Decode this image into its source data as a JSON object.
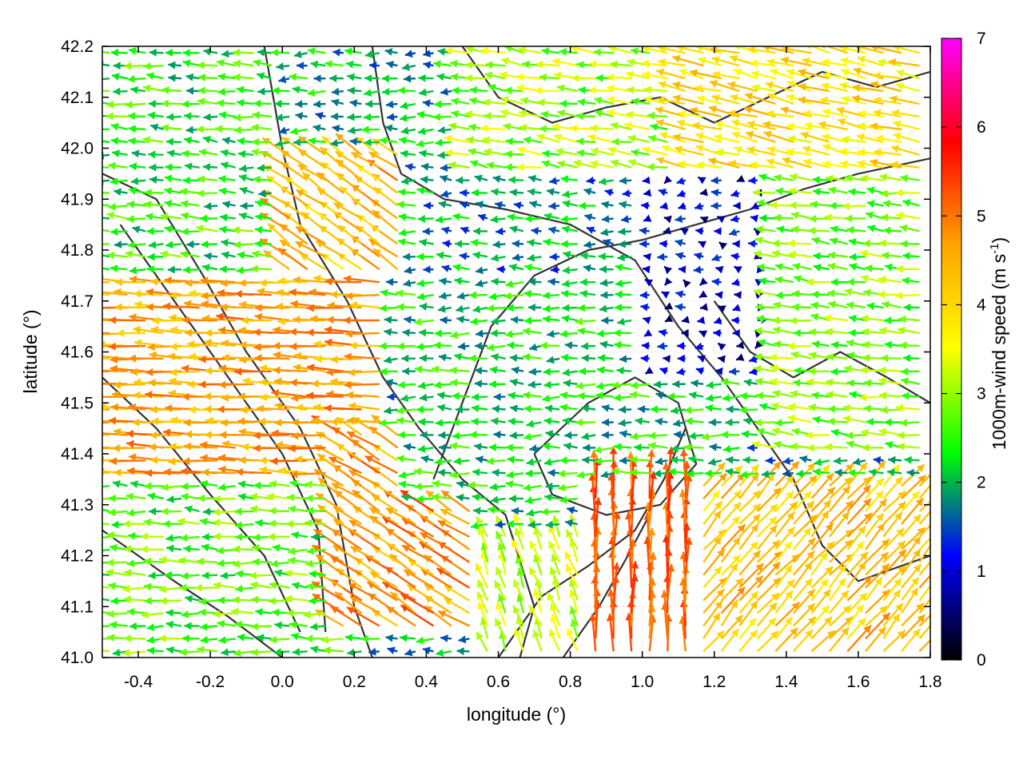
{
  "chart_data": {
    "type": "vector-field",
    "xlabel": "longitude (°)",
    "ylabel": "latitude (°)",
    "colorbar_label": {
      "main": "1000m-wind speed (m s",
      "superscript": "-1",
      "close": ")"
    },
    "xlim": [
      -0.5,
      1.8
    ],
    "ylim": [
      41.0,
      42.2
    ],
    "x_ticks": [
      -0.4,
      -0.2,
      0.0,
      0.2,
      0.4,
      0.6,
      0.8,
      1.0,
      1.2,
      1.4,
      1.6,
      1.8
    ],
    "x_tick_labels": [
      "-0.4",
      "-0.2",
      "0.0",
      "0.2",
      "0.4",
      "0.6",
      "0.8",
      "1.0",
      "1.2",
      "1.4",
      "1.6",
      "1.8"
    ],
    "y_ticks": [
      41.0,
      41.1,
      41.2,
      41.3,
      41.4,
      41.5,
      41.6,
      41.7,
      41.8,
      41.9,
      42.0,
      42.1,
      42.2
    ],
    "y_tick_labels": [
      "41.0",
      "41.1",
      "41.2",
      "41.3",
      "41.4",
      "41.5",
      "41.6",
      "41.7",
      "41.8",
      "41.9",
      "42.0",
      "42.1",
      "42.2"
    ],
    "colorbar": {
      "range": [
        0,
        7
      ],
      "ticks": [
        0,
        1,
        2,
        3,
        4,
        5,
        6,
        7
      ],
      "tick_labels": [
        "0",
        "1",
        "2",
        "3",
        "4",
        "5",
        "6",
        "7"
      ],
      "colors": [
        "#000000",
        "#0000ff",
        "#00ff00",
        "#ffff00",
        "#ffa500",
        "#ff0000",
        "#ff00ff"
      ]
    },
    "grid": true,
    "vector_regions": [
      {
        "lon": [
          -0.5,
          0.3
        ],
        "lat": [
          41.35,
          41.75
        ],
        "u": -4.6,
        "v": 0.2
      },
      {
        "lon": [
          -0.5,
          0.2
        ],
        "lat": [
          41.0,
          41.35
        ],
        "u": -2.6,
        "v": 0.1
      },
      {
        "lon": [
          -0.5,
          0.0
        ],
        "lat": [
          41.75,
          42.2
        ],
        "u": -2.4,
        "v": 0.2
      },
      {
        "lon": [
          0.0,
          0.35
        ],
        "lat": [
          41.75,
          42.0
        ],
        "u": -3.6,
        "v": 2.5
      },
      {
        "lon": [
          0.15,
          0.55
        ],
        "lat": [
          41.05,
          41.45
        ],
        "u": -4.0,
        "v": 2.5
      },
      {
        "lon": [
          0.55,
          0.9
        ],
        "lat": [
          41.0,
          41.25
        ],
        "u": -1.2,
        "v": 3.0
      },
      {
        "lon": [
          0.35,
          1.3
        ],
        "lat": [
          41.3,
          41.75
        ],
        "u": -2.2,
        "v": 0.0
      },
      {
        "lon": [
          0.4,
          1.0
        ],
        "lat": [
          41.75,
          42.0
        ],
        "u": -1.8,
        "v": 0.1
      },
      {
        "lon": [
          0.5,
          1.2
        ],
        "lat": [
          41.95,
          42.2
        ],
        "u": -3.0,
        "v": 0.5
      },
      {
        "lon": [
          1.0,
          1.4
        ],
        "lat": [
          41.55,
          41.95
        ],
        "u": -0.9,
        "v": 0.0
      },
      {
        "lon": [
          1.3,
          1.55
        ],
        "lat": [
          41.65,
          41.8
        ],
        "u": 1.0,
        "v": 0.0
      },
      {
        "lon": [
          1.35,
          1.8
        ],
        "lat": [
          41.4,
          42.0
        ],
        "u": -2.8,
        "v": 0.3
      },
      {
        "lon": [
          1.1,
          1.8
        ],
        "lat": [
          41.95,
          42.2
        ],
        "u": -3.8,
        "v": 0.9
      },
      {
        "lon": [
          0.85,
          1.15
        ],
        "lat": [
          41.0,
          41.35
        ],
        "u": 0.0,
        "v": 5.2
      },
      {
        "lon": [
          1.15,
          1.8
        ],
        "lat": [
          41.0,
          41.35
        ],
        "u": 2.8,
        "v": 3.2
      }
    ],
    "contour_lines": [
      [
        [
          -0.5,
          41.95
        ],
        [
          -0.35,
          41.9
        ],
        [
          -0.22,
          41.75
        ],
        [
          -0.1,
          41.6
        ],
        [
          0.05,
          41.45
        ],
        [
          0.15,
          41.3
        ],
        [
          0.2,
          41.1
        ],
        [
          0.25,
          41.0
        ]
      ],
      [
        [
          -0.45,
          41.85
        ],
        [
          -0.3,
          41.7
        ],
        [
          -0.15,
          41.55
        ],
        [
          0.0,
          41.4
        ],
        [
          0.1,
          41.25
        ],
        [
          0.12,
          41.05
        ]
      ],
      [
        [
          -0.5,
          41.55
        ],
        [
          -0.35,
          41.45
        ],
        [
          -0.2,
          41.32
        ],
        [
          -0.05,
          41.2
        ],
        [
          0.05,
          41.05
        ]
      ],
      [
        [
          -0.5,
          41.25
        ],
        [
          -0.3,
          41.15
        ],
        [
          -0.15,
          41.08
        ],
        [
          0.0,
          41.0
        ]
      ],
      [
        [
          -0.05,
          42.2
        ],
        [
          0.0,
          42.0
        ],
        [
          0.05,
          41.85
        ],
        [
          0.18,
          41.7
        ],
        [
          0.28,
          41.55
        ],
        [
          0.38,
          41.45
        ],
        [
          0.5,
          41.35
        ],
        [
          0.62,
          41.28
        ],
        [
          0.7,
          41.1
        ],
        [
          0.66,
          41.0
        ]
      ],
      [
        [
          0.25,
          42.2
        ],
        [
          0.28,
          42.05
        ],
        [
          0.33,
          41.95
        ],
        [
          0.45,
          41.9
        ],
        [
          0.62,
          41.88
        ],
        [
          0.8,
          41.85
        ],
        [
          0.98,
          41.78
        ],
        [
          1.1,
          41.65
        ],
        [
          1.22,
          41.55
        ],
        [
          1.32,
          41.45
        ],
        [
          1.42,
          41.35
        ],
        [
          1.5,
          41.22
        ],
        [
          1.6,
          41.15
        ],
        [
          1.8,
          41.2
        ]
      ],
      [
        [
          0.42,
          41.35
        ],
        [
          0.5,
          41.5
        ],
        [
          0.58,
          41.65
        ],
        [
          0.7,
          41.75
        ],
        [
          0.85,
          41.8
        ],
        [
          1.0,
          41.82
        ],
        [
          1.15,
          41.85
        ],
        [
          1.3,
          41.88
        ],
        [
          1.45,
          41.92
        ],
        [
          1.6,
          41.95
        ],
        [
          1.8,
          41.98
        ]
      ],
      [
        [
          0.7,
          41.4
        ],
        [
          0.85,
          41.5
        ],
        [
          0.98,
          41.55
        ],
        [
          1.1,
          41.5
        ],
        [
          1.15,
          41.38
        ],
        [
          1.05,
          41.3
        ],
        [
          0.9,
          41.28
        ],
        [
          0.75,
          41.32
        ],
        [
          0.7,
          41.4
        ]
      ],
      [
        [
          0.6,
          41.0
        ],
        [
          0.72,
          41.12
        ],
        [
          0.85,
          41.18
        ],
        [
          0.98,
          41.25
        ],
        [
          1.06,
          41.35
        ],
        [
          1.12,
          41.45
        ]
      ],
      [
        [
          0.78,
          41.0
        ],
        [
          0.88,
          41.1
        ],
        [
          0.96,
          41.2
        ],
        [
          1.02,
          41.28
        ]
      ],
      [
        [
          0.5,
          42.2
        ],
        [
          0.6,
          42.1
        ],
        [
          0.75,
          42.05
        ],
        [
          0.9,
          42.08
        ],
        [
          1.05,
          42.1
        ],
        [
          1.2,
          42.05
        ],
        [
          1.35,
          42.1
        ],
        [
          1.5,
          42.15
        ],
        [
          1.65,
          42.12
        ],
        [
          1.8,
          42.15
        ]
      ],
      [
        [
          1.2,
          41.7
        ],
        [
          1.3,
          41.6
        ],
        [
          1.42,
          41.55
        ],
        [
          1.55,
          41.6
        ],
        [
          1.68,
          41.55
        ],
        [
          1.8,
          41.5
        ]
      ]
    ]
  }
}
